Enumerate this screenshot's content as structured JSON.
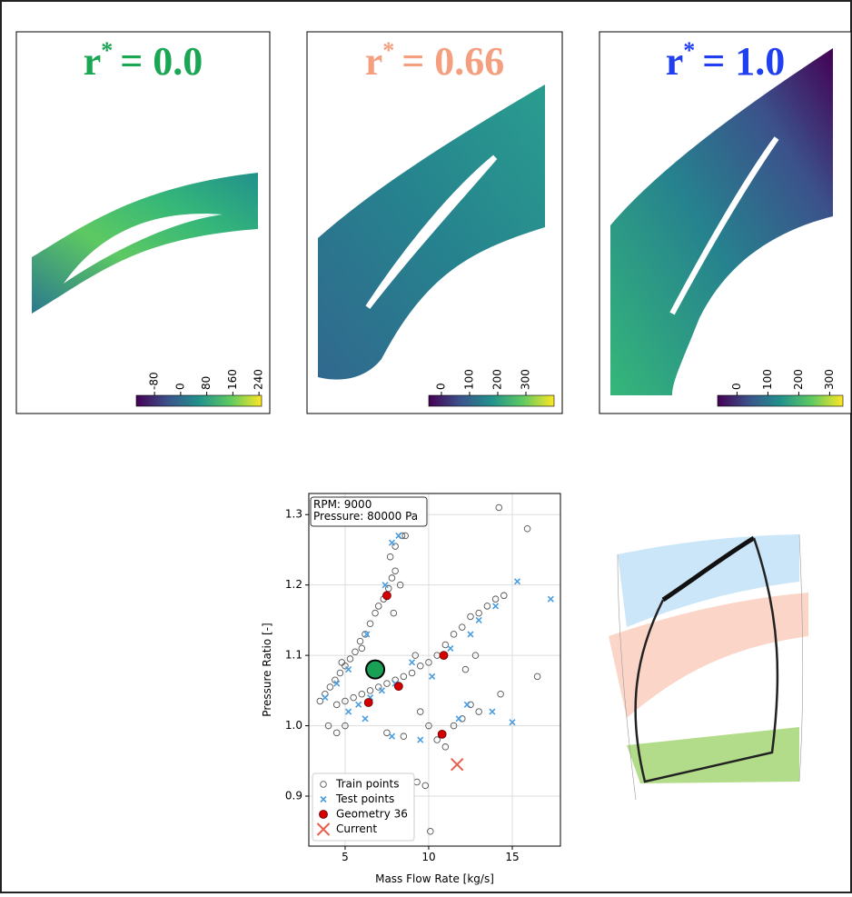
{
  "panels": [
    {
      "title_base": "r",
      "title_sup": "*",
      "title_value": "= 0.0",
      "title_color": "#1aa653",
      "colorbar": {
        "lim": [
          -136,
          248
        ],
        "ticks": [
          -80,
          0,
          80,
          160,
          240
        ]
      }
    },
    {
      "title_base": "r",
      "title_sup": "*",
      "title_value": "= 0.66",
      "title_color": "#f4a080",
      "colorbar": {
        "lim": [
          -45,
          400
        ],
        "ticks": [
          0,
          100,
          200,
          300
        ]
      }
    },
    {
      "title_base": "r",
      "title_sup": "*",
      "title_value": "= 1.0",
      "title_color": "#1f3ff0",
      "colorbar": {
        "lim": [
          -63,
          343
        ],
        "ticks": [
          0,
          100,
          200,
          300
        ]
      }
    }
  ],
  "chart_data": {
    "type": "scatter",
    "xlabel": "Mass Flow Rate [kg/s]",
    "ylabel": "Pressure Ratio [-]",
    "xlim": [
      2.83,
      17.88
    ],
    "ylim": [
      0.829,
      1.33
    ],
    "xticks": [
      5,
      10,
      15
    ],
    "yticks": [
      0.9,
      {
        "value": 1,
        "label": "1.0"
      },
      1.1,
      1.2,
      1.3
    ],
    "grid": true,
    "legend": "lower left",
    "info": [
      "RPM: 9000",
      "Pressure: 80000 Pa"
    ],
    "series": [
      {
        "name": "Train points",
        "marker": "open-circle",
        "color": "#555555",
        "x": [
          3.5,
          3.8,
          4.1,
          4.4,
          4.7,
          5.0,
          5.3,
          5.6,
          5.9,
          6.2,
          6.5,
          6.8,
          7.0,
          7.3,
          7.6,
          7.8,
          8.0,
          7.7,
          8.0,
          8.4,
          8.6,
          8.3,
          7.9,
          6.0,
          4.8,
          4.5,
          5.0,
          5.5,
          6.0,
          6.5,
          7.0,
          7.5,
          8.0,
          8.5,
          9.0,
          9.5,
          10.0,
          10.5,
          11.0,
          11.5,
          12.0,
          12.5,
          13.0,
          13.5,
          14.0,
          14.5,
          12.8,
          12.2,
          9.2,
          4.0,
          4.5,
          5.0,
          7.5,
          8.5,
          9.5,
          10.0,
          10.5,
          11.0,
          11.5,
          12.0,
          12.5,
          13.0,
          9.8,
          9.3,
          10.1,
          14.2,
          15.9,
          16.5,
          14.3
        ],
        "y": [
          1.035,
          1.045,
          1.055,
          1.065,
          1.075,
          1.085,
          1.095,
          1.105,
          1.12,
          1.13,
          1.145,
          1.16,
          1.17,
          1.18,
          1.195,
          1.21,
          1.22,
          1.24,
          1.255,
          1.27,
          1.27,
          1.2,
          1.16,
          1.11,
          1.09,
          1.03,
          1.035,
          1.04,
          1.045,
          1.05,
          1.055,
          1.06,
          1.065,
          1.07,
          1.075,
          1.085,
          1.09,
          1.1,
          1.115,
          1.13,
          1.14,
          1.155,
          1.16,
          1.17,
          1.18,
          1.185,
          1.1,
          1.08,
          1.1,
          1.0,
          0.99,
          1.0,
          0.99,
          0.985,
          1.02,
          1.0,
          0.98,
          0.97,
          1.0,
          1.01,
          1.03,
          1.02,
          0.915,
          0.92,
          0.85,
          1.31,
          1.28,
          1.07,
          1.045
        ]
      },
      {
        "name": "Test points",
        "marker": "x",
        "color": "#4a9de0",
        "x": [
          3.8,
          4.5,
          5.2,
          6.3,
          7.4,
          7.8,
          8.2,
          8.5,
          5.2,
          5.8,
          6.5,
          7.2,
          8.0,
          9.0,
          10.2,
          11.3,
          12.5,
          13.0,
          14.0,
          15.3,
          17.3,
          6.2,
          7.8,
          9.5,
          12.3,
          13.8,
          15.0,
          11.8
        ],
        "y": [
          1.04,
          1.06,
          1.08,
          1.13,
          1.2,
          1.26,
          1.27,
          1.3,
          1.02,
          1.03,
          1.04,
          1.05,
          1.06,
          1.09,
          1.07,
          1.11,
          1.13,
          1.15,
          1.17,
          1.205,
          1.18,
          1.01,
          0.985,
          0.98,
          1.03,
          1.02,
          1.005,
          1.01
        ]
      },
      {
        "name": "Geometry 36",
        "marker": "filled-circle",
        "color": "#d40000",
        "x": [
          6.4,
          7.5,
          8.2,
          10.9,
          10.8
        ],
        "y": [
          1.033,
          1.185,
          1.056,
          1.1,
          0.988
        ]
      },
      {
        "name": "Current",
        "marker": "big-x",
        "color": "#e8604c",
        "x": [
          11.7
        ],
        "y": [
          0.945
        ]
      }
    ],
    "highlight": {
      "x": 6.8,
      "y": 1.08,
      "color": "#18a055"
    }
  }
}
